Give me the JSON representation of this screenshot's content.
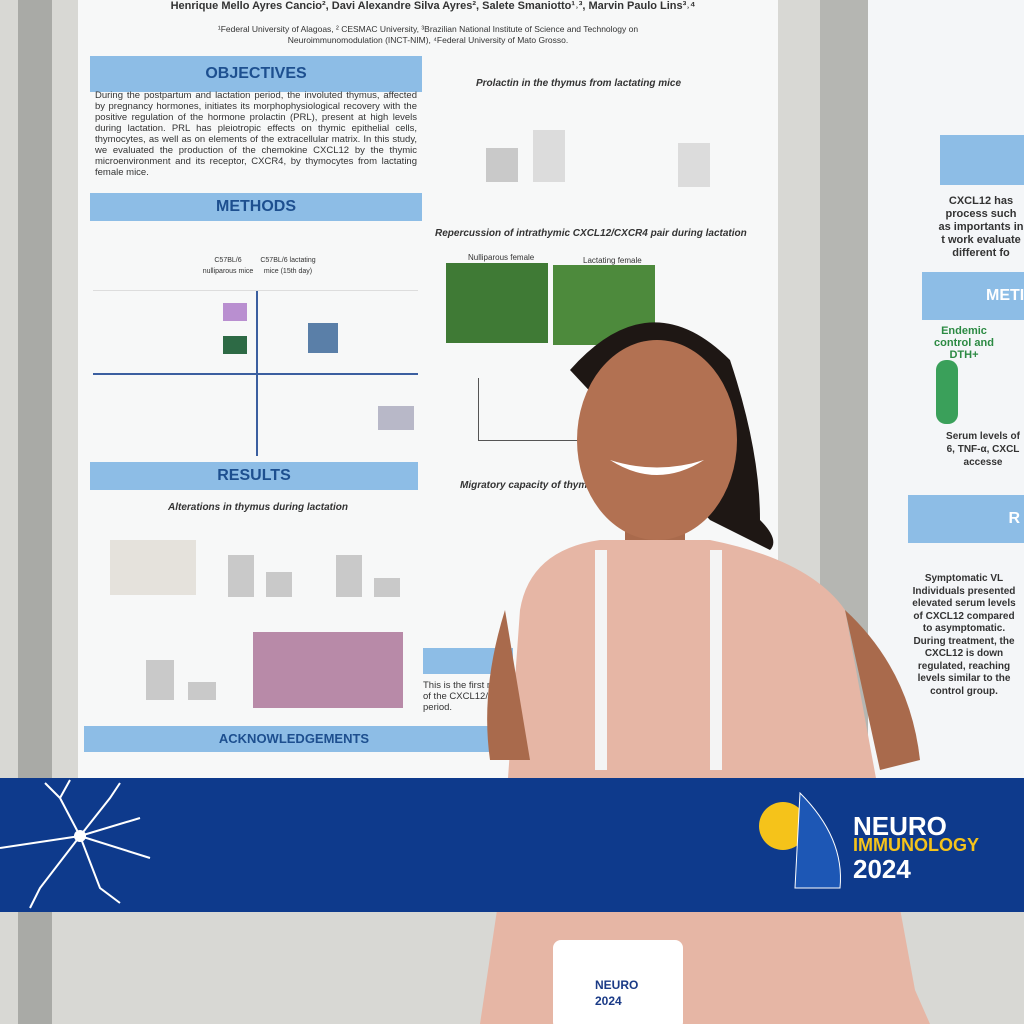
{
  "poster_left": {
    "authors": "Henrique Mello Ayres Cancio², Davi Alexandre Silva Ayres², Salete Smaniotto¹˒³, Marvin Paulo Lins³˒⁴",
    "affiliations": "¹Federal University of Alagoas, ² CESMAC University, ³Brazilian National Institute of Science and Technology on Neuroimmunomodulation (INCT-NIM), ⁴Federal University of Mato Grosso.",
    "objectives_heading": "OBJECTIVES",
    "objectives_text": "During the postpartum and lactation period, the involuted thymus, affected by pregnancy hormones, initiates its morphophysiological recovery with the positive regulation of the hormone prolactin (PRL), present at high levels during lactation. PRL has pleiotropic effects on thymic epithelial cells, thymocytes, as well as on elements of the extracellular matrix. In this study, we evaluated the production of the chemokine CXCL12 by the thymic microenvironment and its receptor, CXCR4, by thymocytes from lactating female mice.",
    "methods_heading": "METHODS",
    "mouse_a": "C57BL/6 nulliparous mice",
    "mouse_b": "C57BL/6 lactating mice (15th day)",
    "results_heading": "RESULTS",
    "alterations_title": "Alterations in thymus during lactation",
    "prolactin_title": "Prolactin in the thymus from lactating mice",
    "repercussion_title": "Repercussion of intrathymic CXCL12/CXCR4 pair during lactation",
    "nulliparous": "Nulliparous female",
    "lactating": "Lactating female",
    "migratory_title": "Migratory capacity of thymo",
    "conclusion": "This is the first rep of the CXCL12/C period.",
    "acknowledgements_heading": "ACKNOWLEDGEMENTS"
  },
  "poster_right": {
    "intro": "CXCL12 has process such as importants in t work evaluate different fo",
    "methods_heading": "METI",
    "group": "Endemic control and DTH+",
    "serum": "Serum levels of 6, TNF-α, CXCL accesse",
    "results_heading": "R",
    "finding": "Symptomatic VL Individuals presented elevated serum levels of CXCL12 compared to asymptomatic. During treatment, the CXCL12 is down regulated, reaching levels similar to the control group."
  },
  "banner": {
    "line1": "NEURO",
    "line2": "IMMUNOLOGY",
    "line3": "2024"
  },
  "badge": {
    "line1": "NEURO",
    "line2": "2024"
  }
}
